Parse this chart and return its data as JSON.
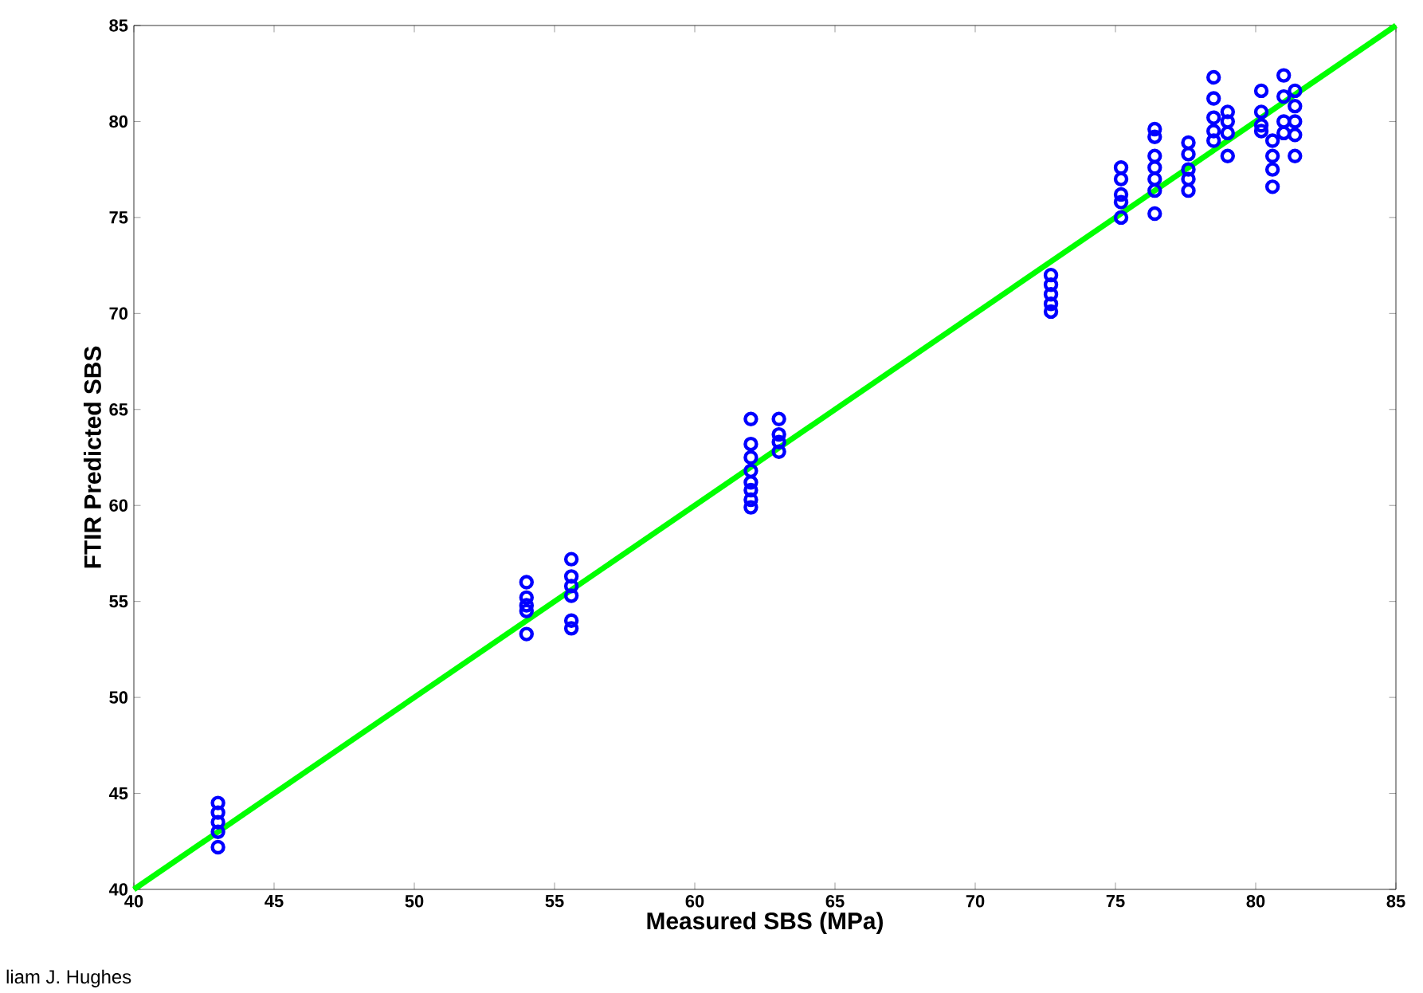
{
  "chart_data": {
    "type": "scatter",
    "xlabel": "Measured SBS (MPa)",
    "ylabel": "FTIR Predicted SBS",
    "xlim": [
      40,
      85
    ],
    "ylim": [
      40,
      85
    ],
    "xticks": [
      40,
      45,
      50,
      55,
      60,
      65,
      70,
      75,
      80,
      85
    ],
    "yticks": [
      40,
      45,
      50,
      55,
      60,
      65,
      70,
      75,
      80,
      85
    ],
    "grid": false,
    "marker": "circle",
    "annotations": [
      "liam J. Hughes"
    ],
    "series": [
      {
        "color": "#0000ff",
        "x": [
          43,
          43,
          43,
          43,
          43,
          54,
          54,
          54,
          54,
          54,
          55.6,
          55.6,
          55.6,
          55.6,
          55.6,
          55.6,
          62,
          62,
          62,
          62,
          62,
          62,
          62,
          62,
          63,
          63,
          63,
          63,
          72.7,
          72.7,
          72.7,
          72.7,
          72.7,
          75.2,
          75.2,
          75.2,
          75.2,
          75.2,
          76.4,
          76.4,
          76.4,
          76.4,
          76.4,
          76.4,
          76.4,
          77.6,
          77.6,
          77.6,
          77.6,
          77.6,
          78.5,
          78.5,
          78.5,
          78.5,
          78.5,
          79,
          79,
          79,
          79,
          80.2,
          80.2,
          80.2,
          80.2,
          80.6,
          80.6,
          80.6,
          80.6,
          81,
          81,
          81,
          81,
          81.4,
          81.4,
          81.4,
          81.4,
          81.4
        ],
        "values": [
          44.5,
          44.0,
          43.5,
          43.0,
          42.2,
          56.0,
          55.2,
          54.8,
          54.5,
          53.3,
          57.2,
          56.3,
          55.8,
          55.3,
          54.0,
          53.6,
          64.5,
          63.2,
          62.5,
          61.8,
          61.2,
          60.8,
          60.3,
          59.9,
          64.5,
          63.7,
          63.3,
          62.8,
          72.0,
          71.5,
          71.0,
          70.5,
          70.1,
          77.6,
          77.0,
          76.2,
          75.8,
          75.0,
          79.6,
          79.2,
          78.2,
          77.6,
          77.0,
          76.4,
          75.2,
          78.9,
          78.3,
          77.5,
          77.0,
          76.4,
          82.3,
          81.2,
          80.2,
          79.5,
          79.0,
          80.5,
          80.0,
          79.4,
          78.2,
          81.6,
          80.5,
          79.8,
          79.5,
          79.0,
          78.2,
          77.5,
          76.6,
          82.4,
          81.3,
          80.0,
          79.4,
          81.6,
          80.8,
          80.0,
          79.3,
          78.2
        ]
      },
      {
        "type": "line",
        "color": "#00ff00",
        "marker": "none",
        "x": [
          40,
          85
        ],
        "values": [
          40,
          85
        ]
      }
    ]
  }
}
